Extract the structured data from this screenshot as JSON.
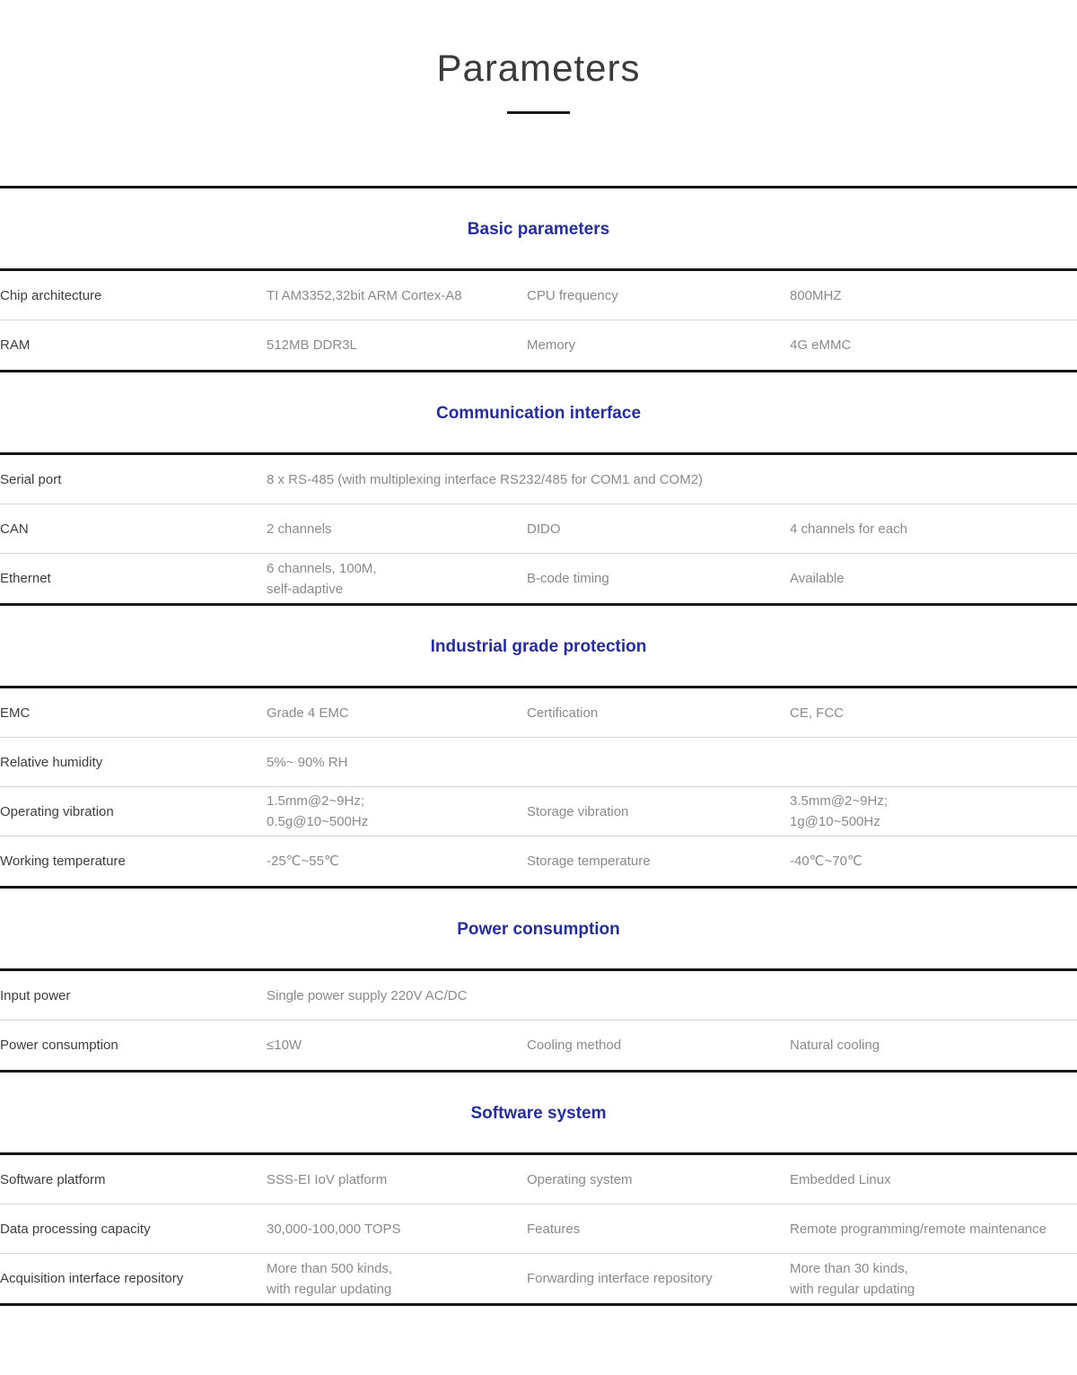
{
  "page": {
    "title": "Parameters"
  },
  "colors": {
    "heading_accent": "#272f93",
    "label_text": "#3d3d3d",
    "value_text": "#8a8a8a",
    "thick_line": "#161616",
    "thin_line": "#d6d6d6"
  },
  "sections": [
    {
      "heading": "Basic parameters",
      "rows": [
        {
          "c1": "Chip architecture",
          "c2": "TI AM3352,32bit ARM Cortex-A8",
          "c3": "CPU frequency",
          "c4": "800MHZ"
        },
        {
          "c1": "RAM",
          "c2": "512MB DDR3L",
          "c3": "Memory",
          "c4": "4G eMMC"
        }
      ]
    },
    {
      "heading": "Communication interface",
      "rows": [
        {
          "c1": "Serial port",
          "c2": "8 x RS-485 (with multiplexing interface RS232/485 for COM1 and COM2)"
        },
        {
          "c1": "CAN",
          "c2": "2 channels",
          "c3": "DIDO",
          "c4": "4 channels for each"
        },
        {
          "c1": "Ethernet",
          "c2": "6 channels, 100M,\nself-adaptive",
          "c3": "B-code timing",
          "c4": "Available"
        }
      ]
    },
    {
      "heading": "Industrial grade protection",
      "rows": [
        {
          "c1": "EMC",
          "c2": "Grade 4 EMC",
          "c3": "Certification",
          "c4": "CE, FCC"
        },
        {
          "c1": "Relative humidity",
          "c2": "5%~ 90% RH",
          "c3": "",
          "c4": ""
        },
        {
          "c1": "Operating vibration",
          "c2": "1.5mm@2~9Hz;\n0.5g@10~500Hz",
          "c3": "Storage vibration",
          "c4": "3.5mm@2~9Hz;\n1g@10~500Hz"
        },
        {
          "c1": "Working temperature",
          "c2": "-25℃~55℃",
          "c3": "Storage temperature",
          "c4": "-40℃~70℃"
        }
      ]
    },
    {
      "heading": "Power consumption",
      "rows": [
        {
          "c1": "Input power",
          "c2": "Single power supply 220V AC/DC"
        },
        {
          "c1": "Power consumption",
          "c2": "≤10W",
          "c3": "Cooling method",
          "c4": "Natural cooling"
        }
      ]
    },
    {
      "heading": "Software system",
      "rows": [
        {
          "c1": "Software platform",
          "c2": "SSS-EI IoV platform",
          "c3": "Operating system",
          "c4": "Embedded Linux"
        },
        {
          "c1": "Data processing capacity",
          "c2": "30,000-100,000 TOPS",
          "c3": "Features",
          "c4": "Remote programming/remote maintenance"
        },
        {
          "c1": "Acquisition interface repository",
          "c2": "More than 500 kinds,\nwith regular updating",
          "c3": "Forwarding interface repository",
          "c4": "More than 30 kinds,\nwith regular updating"
        }
      ]
    }
  ]
}
